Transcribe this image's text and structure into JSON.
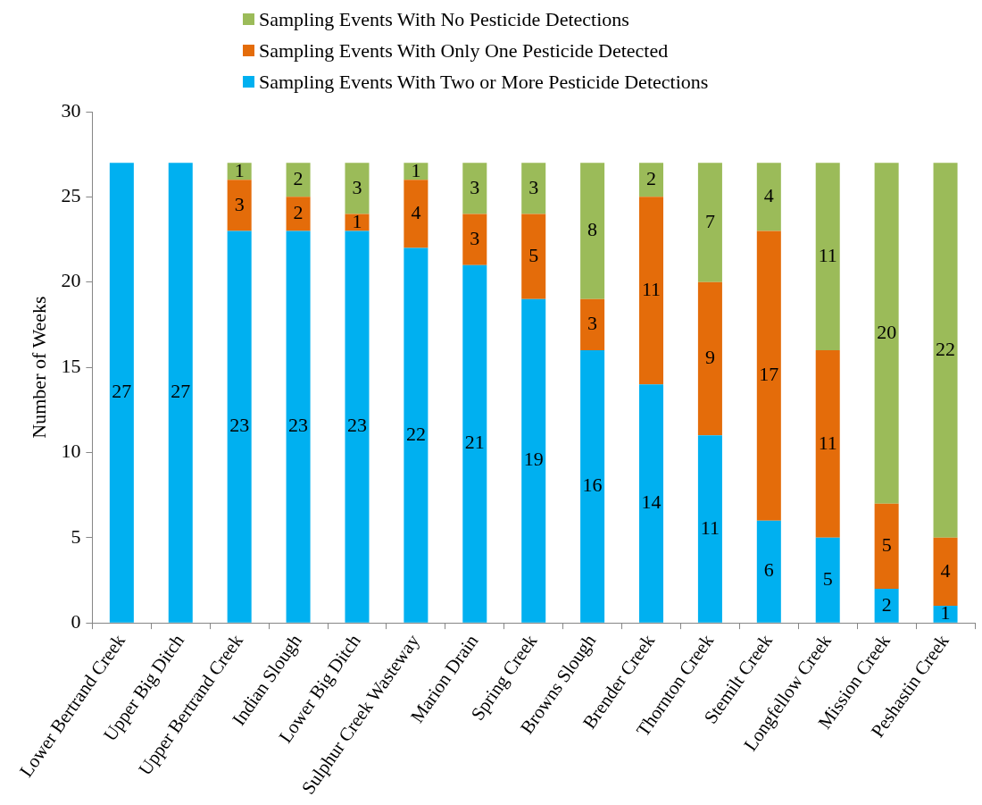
{
  "chart_data": {
    "type": "bar",
    "stacked": true,
    "ylabel": "Number of Weeks",
    "categories": [
      "Lower Bertrand Creek",
      "Upper Big Ditch",
      "Upper Bertrand Creek",
      "Indian Slough",
      "Lower Big Ditch",
      "Sulphur Creek Wasteway",
      "Marion Drain",
      "Spring Creek",
      "Browns Slough",
      "Brender Creek",
      "Thornton Creek",
      "Stemilt Creek",
      "Longfellow Creek",
      "Mission Creek",
      "Peshastin Creek"
    ],
    "series": [
      {
        "name": "Sampling Events With Two or More Pesticide Detections",
        "color": "#00b0f0",
        "values": [
          27,
          27,
          23,
          23,
          23,
          22,
          21,
          19,
          16,
          14,
          11,
          6,
          5,
          2,
          1
        ]
      },
      {
        "name": "Sampling Events With Only One Pesticide Detected",
        "color": "#e46c0a",
        "values": [
          null,
          null,
          3,
          2,
          1,
          4,
          3,
          5,
          3,
          11,
          9,
          17,
          11,
          5,
          4
        ]
      },
      {
        "name": "Sampling Events With No Pesticide Detections",
        "color": "#9bbb59",
        "values": [
          null,
          null,
          1,
          2,
          3,
          1,
          3,
          3,
          8,
          2,
          7,
          4,
          11,
          20,
          22
        ]
      }
    ],
    "ylim": [
      0,
      30
    ],
    "yticks": [
      0,
      5,
      10,
      15,
      20,
      25,
      30
    ],
    "grid": false,
    "legend": "top",
    "data_labels": true
  }
}
